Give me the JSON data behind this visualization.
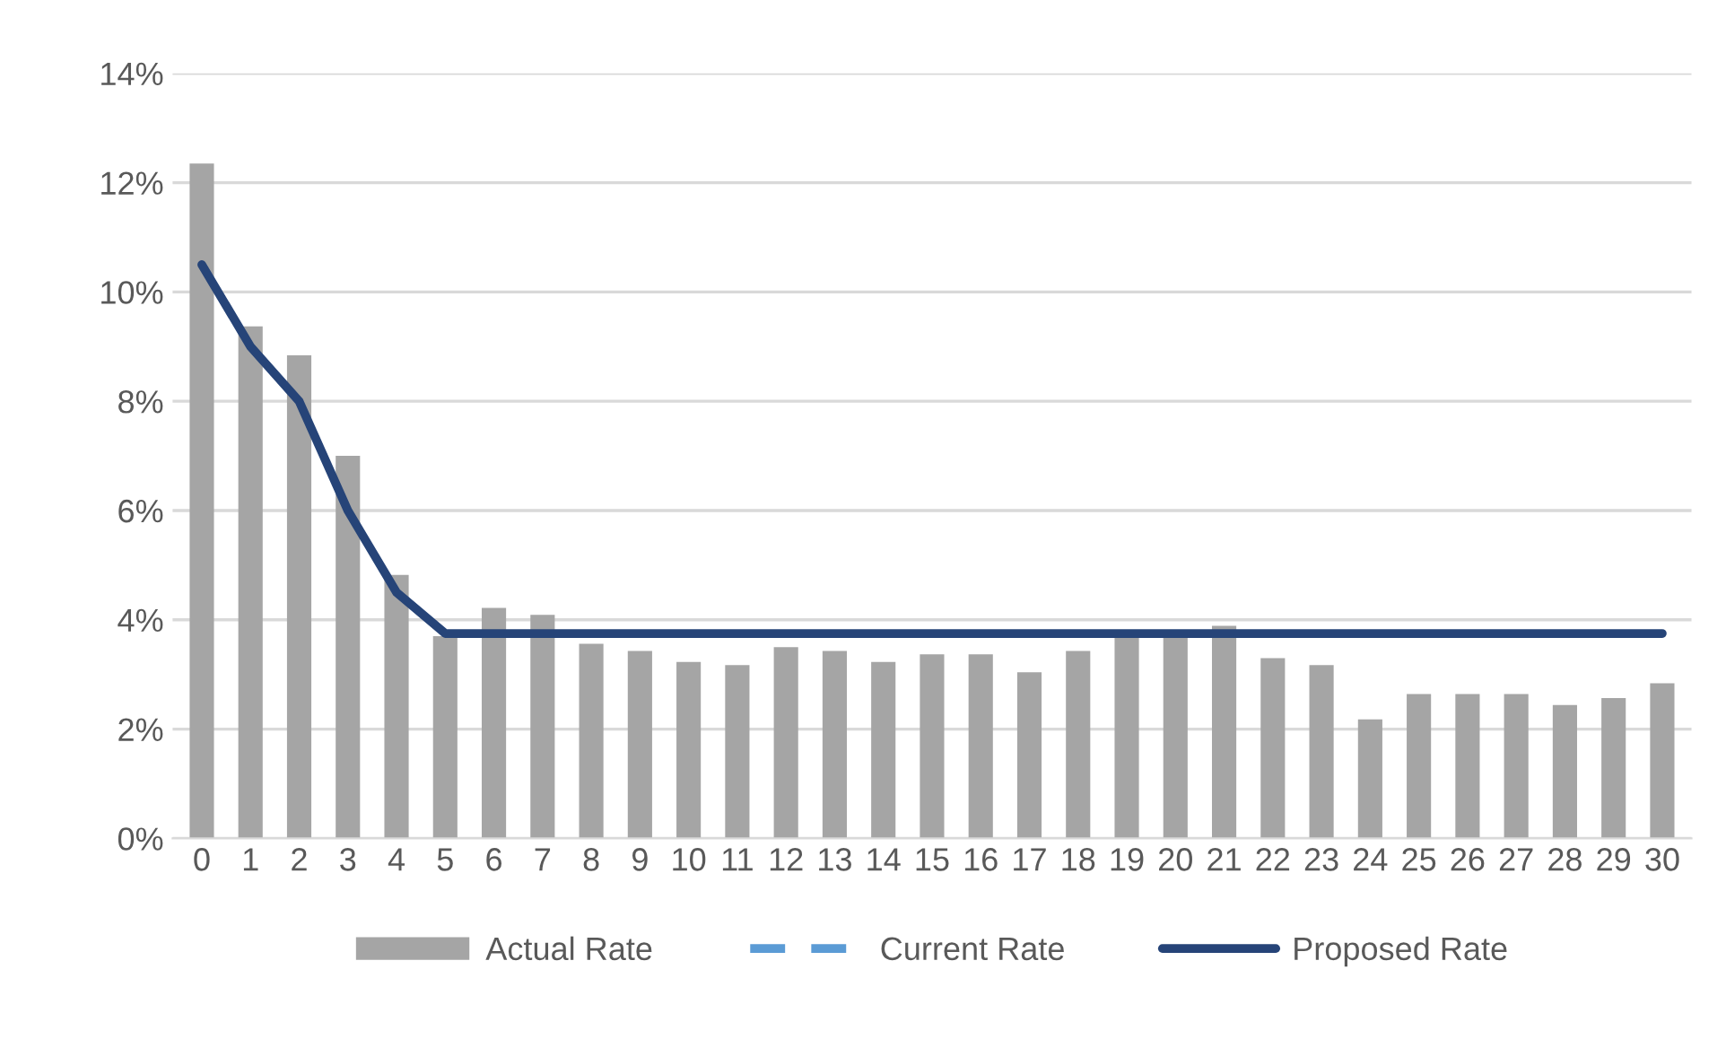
{
  "chart_data": {
    "type": "bar",
    "categories": [
      "0",
      "1",
      "2",
      "3",
      "4",
      "5",
      "6",
      "7",
      "8",
      "9",
      "10",
      "11",
      "12",
      "13",
      "14",
      "15",
      "16",
      "17",
      "18",
      "19",
      "20",
      "21",
      "22",
      "23",
      "24",
      "25",
      "26",
      "27",
      "28",
      "29",
      "30"
    ],
    "series": [
      {
        "name": "Actual Rate",
        "color": "#a5a5a5",
        "values": [
          12.35,
          9.37,
          8.84,
          7.0,
          4.82,
          3.7,
          4.22,
          4.09,
          3.56,
          3.43,
          3.23,
          3.17,
          3.5,
          3.43,
          3.23,
          3.37,
          3.37,
          3.04,
          3.43,
          3.7,
          3.7,
          3.89,
          3.3,
          3.17,
          2.18,
          2.64,
          2.64,
          2.64,
          2.44,
          2.57,
          2.84
        ]
      },
      {
        "name": "Current Rate",
        "type": "line",
        "line_style": "dashed",
        "color": "#5b9bd5",
        "values": [
          null,
          null,
          null,
          null,
          null,
          null,
          null,
          null,
          null,
          null,
          null,
          null,
          null,
          null,
          null,
          null,
          null,
          null,
          null,
          null,
          null,
          null,
          null,
          null,
          null,
          null,
          null,
          null,
          null,
          null,
          null
        ]
      },
      {
        "name": "Proposed Rate",
        "type": "line",
        "line_style": "solid",
        "color": "#264478",
        "values": [
          10.5,
          9.0,
          8.0,
          6.0,
          4.5,
          3.75,
          3.75,
          3.75,
          3.75,
          3.75,
          3.75,
          3.75,
          3.75,
          3.75,
          3.75,
          3.75,
          3.75,
          3.75,
          3.75,
          3.75,
          3.75,
          3.75,
          3.75,
          3.75,
          3.75,
          3.75,
          3.75,
          3.75,
          3.75,
          3.75,
          3.75
        ]
      }
    ],
    "ylim": [
      0,
      14
    ],
    "yticks": [
      {
        "value": 0,
        "label": "0%"
      },
      {
        "value": 2,
        "label": "2%"
      },
      {
        "value": 4,
        "label": "4%"
      },
      {
        "value": 6,
        "label": "6%"
      },
      {
        "value": 8,
        "label": "8%"
      },
      {
        "value": 10,
        "label": "10%"
      },
      {
        "value": 12,
        "label": "12%"
      },
      {
        "value": 14,
        "label": "14%"
      }
    ],
    "grid": "y",
    "legend": "bottom"
  }
}
